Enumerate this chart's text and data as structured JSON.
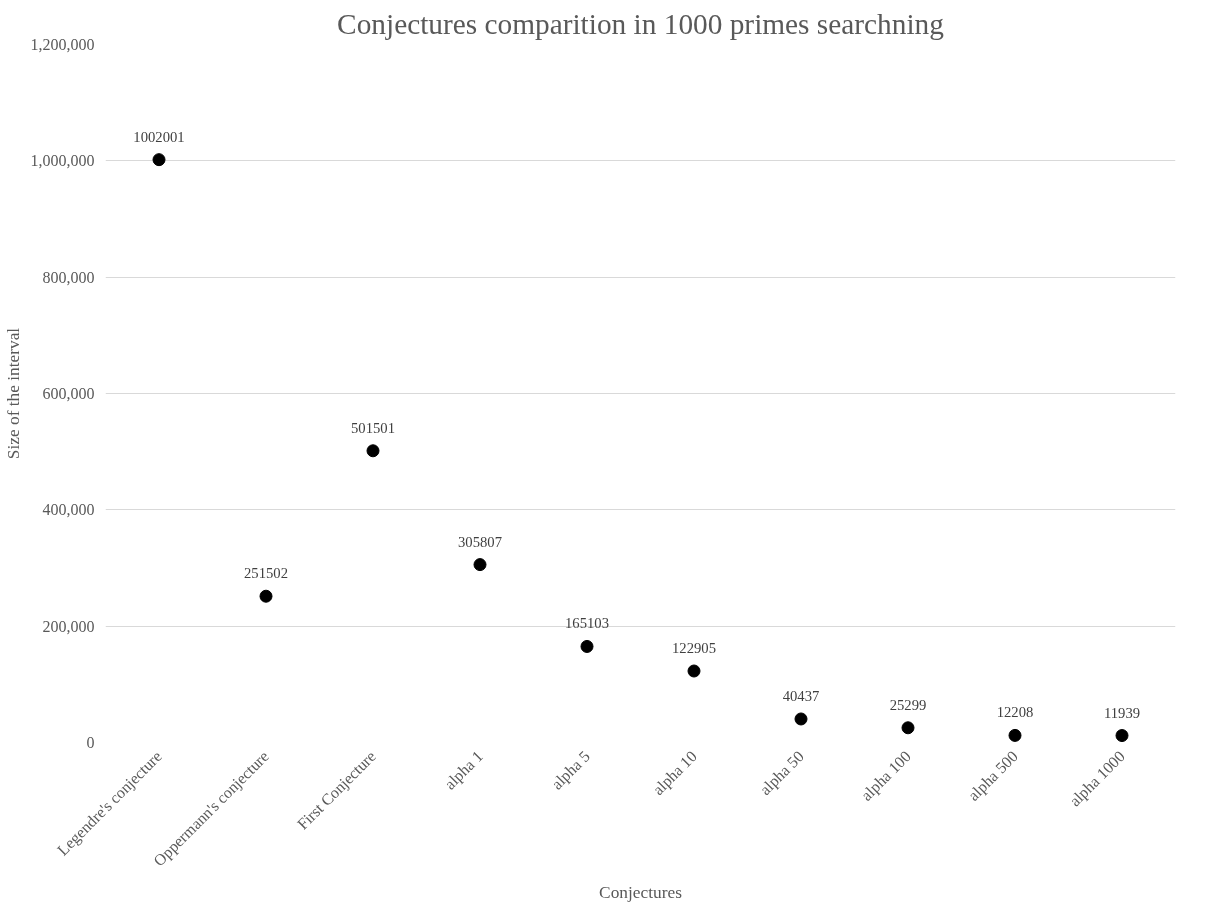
{
  "chart_data": {
    "type": "scatter",
    "title": "Conjectures comparition in 1000 primes searchning",
    "xlabel": "Conjectures",
    "ylabel": "Size of the interval",
    "categories": [
      "Legendre's conjecture",
      "Oppermann's conjecture",
      "First Conjecture",
      "alpha 1",
      "alpha 5",
      "alpha 10",
      "alpha 50",
      "alpha 100",
      "alpha 500",
      "alpha 1000"
    ],
    "values": [
      1002001,
      251502,
      501501,
      305807,
      165103,
      122905,
      40437,
      25299,
      12208,
      11939
    ],
    "color": "#000000",
    "marker": "circle",
    "data_labels": true,
    "grid": "y",
    "ylim": [
      0,
      1200000
    ],
    "yticks": [
      {
        "value": 0,
        "label": "0"
      },
      {
        "value": 200000,
        "label": "200,000"
      },
      {
        "value": 400000,
        "label": "400,000"
      },
      {
        "value": 600000,
        "label": "600,000"
      },
      {
        "value": 800000,
        "label": "800,000"
      },
      {
        "value": 1000000,
        "label": "1,000,000"
      },
      {
        "value": 1200000,
        "label": "1,200,000"
      }
    ]
  }
}
